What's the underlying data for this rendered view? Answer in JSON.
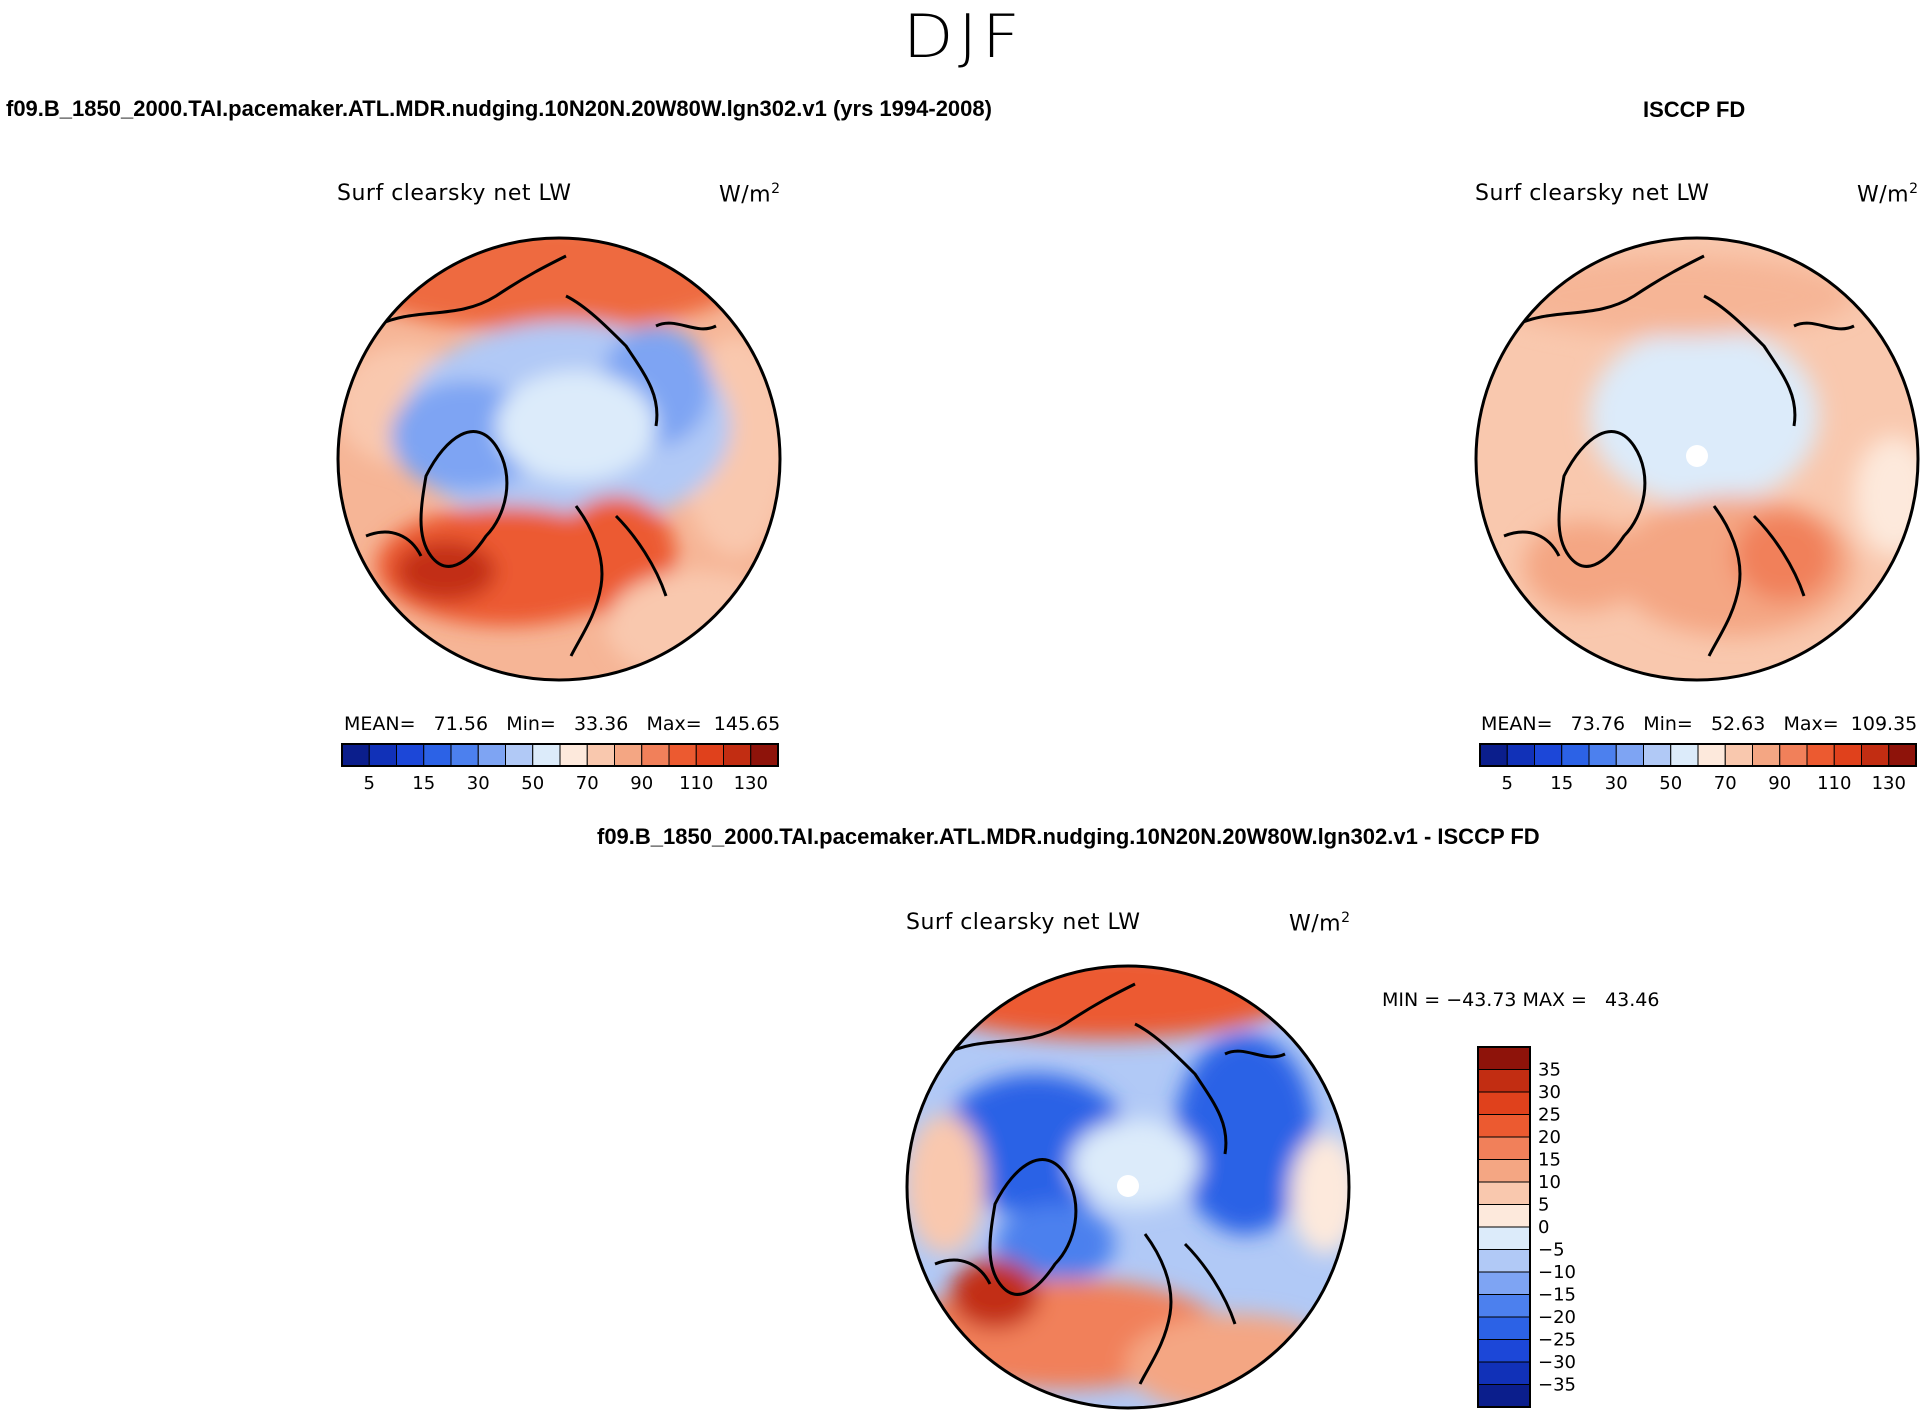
{
  "figure": {
    "season": "DJF",
    "model_title": "f09.B_1850_2000.TAI.pacemaker.ATL.MDR.nudging.10N20N.20W80W.lgn302.v1 (yrs 1994-2008)",
    "obs_title": "ISCCP FD",
    "diff_title": "f09.B_1850_2000.TAI.pacemaker.ATL.MDR.nudging.10N20N.20W80W.lgn302.v1 - ISCCP FD"
  },
  "panels": {
    "model": {
      "variable": "Surf clearsky net LW",
      "units_base": "W/m",
      "units_exp": "2",
      "stats": {
        "mean_label": "MEAN=",
        "mean": "71.56",
        "min_label": "Min=",
        "min": "33.36",
        "max_label": "Max=",
        "max": "145.65"
      }
    },
    "obs": {
      "variable": "Surf clearsky net LW",
      "units_base": "W/m",
      "units_exp": "2",
      "stats": {
        "mean_label": "MEAN=",
        "mean": "73.76",
        "min_label": "Min=",
        "min": "52.63",
        "max_label": "Max=",
        "max": "109.35"
      }
    },
    "diff": {
      "variable": "Surf clearsky net LW",
      "units_base": "W/m",
      "units_exp": "2",
      "minmax": "MIN = −43.73 MAX =   43.46"
    }
  },
  "chart_data": [
    {
      "type": "heatmap",
      "projection": "polar-stereographic-north",
      "title": "Surf clearsky net LW",
      "units": "W/m2",
      "mean": 71.56,
      "min": 33.36,
      "max": 145.65,
      "colorbar_levels": [
        5,
        10,
        15,
        20,
        30,
        40,
        50,
        60,
        70,
        80,
        90,
        100,
        110,
        120,
        130
      ],
      "colorbar_tick_labels": [
        "5",
        "15",
        "30",
        "50",
        "70",
        "90",
        "110",
        "130"
      ],
      "colorbar_colors": [
        "#0b1e8c",
        "#1131b8",
        "#1c47d8",
        "#2c62e6",
        "#4c80ee",
        "#7ea4f3",
        "#b1c9f6",
        "#dcebfa",
        "#fde9dc",
        "#f9c8ae",
        "#f4a683",
        "#f1805a",
        "#ec5a30",
        "#e0411c",
        "#c22d12",
        "#8e130a"
      ]
    },
    {
      "type": "heatmap",
      "projection": "polar-stereographic-north",
      "title": "Surf clearsky net LW",
      "units": "W/m2",
      "mean": 73.76,
      "min": 52.63,
      "max": 109.35,
      "colorbar_levels": [
        5,
        10,
        15,
        20,
        30,
        40,
        50,
        60,
        70,
        80,
        90,
        100,
        110,
        120,
        130
      ],
      "colorbar_tick_labels": [
        "5",
        "15",
        "30",
        "50",
        "70",
        "90",
        "110",
        "130"
      ],
      "colorbar_colors": [
        "#0b1e8c",
        "#1131b8",
        "#1c47d8",
        "#2c62e6",
        "#4c80ee",
        "#7ea4f3",
        "#b1c9f6",
        "#dcebfa",
        "#fde9dc",
        "#f9c8ae",
        "#f4a683",
        "#f1805a",
        "#ec5a30",
        "#e0411c",
        "#c22d12",
        "#8e130a"
      ]
    },
    {
      "type": "heatmap",
      "projection": "polar-stereographic-north",
      "title": "Surf clearsky net LW",
      "units": "W/m2",
      "min": -43.73,
      "max": 43.46,
      "colorbar_levels": [
        -35,
        -30,
        -25,
        -20,
        -15,
        -10,
        -5,
        0,
        5,
        10,
        15,
        20,
        25,
        30,
        35
      ],
      "colorbar_tick_labels": [
        "35",
        "30",
        "25",
        "20",
        "15",
        "10",
        "5",
        "0",
        "−5",
        "−10",
        "−15",
        "−20",
        "−25",
        "−30",
        "−35"
      ],
      "colorbar_colors": [
        "#8e130a",
        "#c22d12",
        "#e0411c",
        "#ec5a30",
        "#f1805a",
        "#f4a683",
        "#f9c8ae",
        "#fde9dc",
        "#dcebfa",
        "#b1c9f6",
        "#7ea4f3",
        "#4c80ee",
        "#2c62e6",
        "#1c47d8",
        "#1131b8",
        "#0b1e8c"
      ]
    }
  ]
}
